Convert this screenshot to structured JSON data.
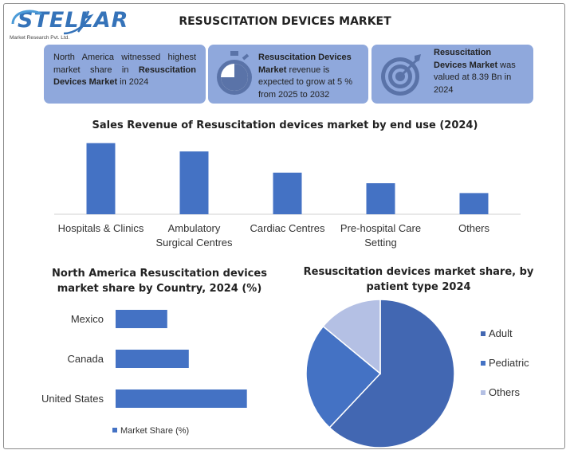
{
  "logo": {
    "name": "STELLAR",
    "subtitle": "Market Research Pvt. Ltd."
  },
  "title": "RESUSCITATION DEVICES MARKET",
  "cards": [
    {
      "icon": "globe-icon",
      "pre": "North America witnessed highest market share in ",
      "bold": "Resuscitation Devices Market",
      "post": " in 2024"
    },
    {
      "icon": "stopwatch-icon",
      "bold": "Resuscitation Devices Market",
      "post": " revenue is expected to grow at 5 % from 2025 to 2032"
    },
    {
      "icon": "target-icon",
      "bold": "Resuscitation Devices Market",
      "post": " was valued at 8.39 Bn in 2024"
    }
  ],
  "colors": {
    "card": "#8fa8dc",
    "bar": "#4472c4",
    "adult": "#4267b2",
    "pediatric": "#4472c4",
    "others": "#b4c0e4"
  },
  "chart_data": [
    {
      "type": "bar",
      "title": "Sales Revenue of Resuscitation devices market by end use (2024)",
      "categories": [
        [
          "Hospitals & Clinics"
        ],
        [
          "Ambulatory",
          "Surgical Centres"
        ],
        [
          "Cardiac Centres"
        ],
        [
          "Pre-hospital Care",
          "Setting"
        ],
        [
          "Others"
        ]
      ],
      "values": [
        94,
        83,
        55,
        41,
        28
      ],
      "xlabel": "",
      "ylabel": "",
      "ylim": [
        0,
        100
      ]
    },
    {
      "type": "bar",
      "orientation": "horizontal",
      "title": [
        "North America Resuscitation devices",
        "market share by Country, 2024 (%)"
      ],
      "categories": [
        "Mexico",
        "Canada",
        "United States"
      ],
      "values": [
        24,
        34,
        61
      ],
      "series_name": "Market Share (%)",
      "xlim": [
        0,
        100
      ]
    },
    {
      "type": "pie",
      "title": [
        "Resuscitation devices market share, by",
        "patient type 2024"
      ],
      "labels": [
        "Adult",
        "Pediatric",
        "Others"
      ],
      "values": [
        62,
        24,
        14
      ]
    }
  ]
}
